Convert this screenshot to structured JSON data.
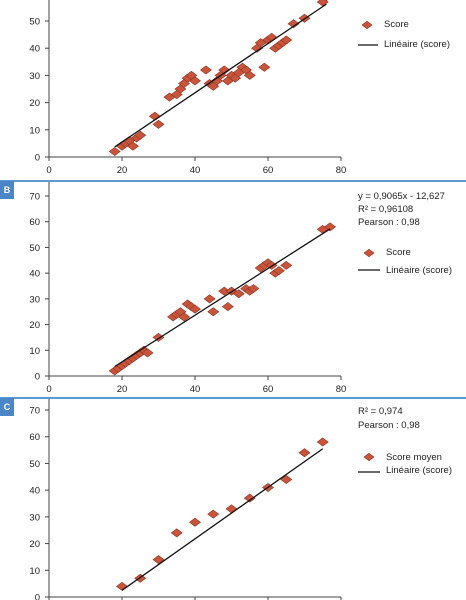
{
  "colors": {
    "marker": "#c8553b",
    "marker_edge": "#8e3524",
    "trend": "#111111",
    "divider": "#5b9bd5",
    "label_bg": "#4a86c8"
  },
  "panels": [
    {
      "label": "",
      "stats": [],
      "legend_score": "Score",
      "legend_trend": "Linéaire (score)"
    },
    {
      "label": "B",
      "stats": [
        "y = 0,9065x - 12,627",
        "R² = 0,96108",
        "Pearson : 0,98"
      ],
      "legend_score": "Score",
      "legend_trend": "Linéaire (score)"
    },
    {
      "label": "C",
      "stats": [
        "R² = 0,974",
        "Pearson : 0,98"
      ],
      "legend_score": "Score moyen",
      "legend_trend": "Linéaire (score)"
    }
  ],
  "chart_data": [
    {
      "type": "scatter",
      "xlim": [
        0,
        80
      ],
      "ylim": [
        0,
        60
      ],
      "xticks": [
        "0",
        "20",
        "40",
        "60",
        "80"
      ],
      "yticks": [
        "0",
        "10",
        "20",
        "30",
        "40",
        "50"
      ],
      "series": [
        {
          "name": "Score",
          "points": [
            [
              18,
              2
            ],
            [
              20,
              4
            ],
            [
              21,
              5
            ],
            [
              22,
              6
            ],
            [
              23,
              4
            ],
            [
              24,
              7
            ],
            [
              25,
              8
            ],
            [
              29,
              15
            ],
            [
              30,
              12
            ],
            [
              33,
              22
            ],
            [
              35,
              23
            ],
            [
              36,
              25
            ],
            [
              37,
              27
            ],
            [
              38,
              29
            ],
            [
              39,
              30
            ],
            [
              40,
              28
            ],
            [
              43,
              32
            ],
            [
              44,
              27
            ],
            [
              45,
              26
            ],
            [
              46,
              28
            ],
            [
              47,
              30
            ],
            [
              48,
              32
            ],
            [
              49,
              28
            ],
            [
              50,
              30
            ],
            [
              51,
              29
            ],
            [
              52,
              31
            ],
            [
              53,
              33
            ],
            [
              54,
              32
            ],
            [
              55,
              30
            ],
            [
              57,
              40
            ],
            [
              58,
              42
            ],
            [
              59,
              33
            ],
            [
              60,
              43
            ],
            [
              61,
              44
            ],
            [
              62,
              40
            ],
            [
              63,
              41
            ],
            [
              64,
              42
            ],
            [
              65,
              43
            ],
            [
              67,
              49
            ],
            [
              70,
              51
            ],
            [
              75,
              57
            ],
            [
              76,
              59
            ]
          ]
        }
      ],
      "trendline": {
        "name": "Linéaire (score)",
        "from": [
          18,
          3.7
        ],
        "to": [
          76,
          56.2
        ]
      }
    },
    {
      "type": "scatter",
      "xlim": [
        0,
        80
      ],
      "ylim": [
        0,
        70
      ],
      "xticks": [
        "0",
        "20",
        "40",
        "60",
        "80"
      ],
      "yticks": [
        "0",
        "10",
        "20",
        "30",
        "40",
        "50",
        "60",
        "70"
      ],
      "series": [
        {
          "name": "Score",
          "points": [
            [
              18,
              2
            ],
            [
              19,
              3
            ],
            [
              20,
              4
            ],
            [
              21,
              5
            ],
            [
              22,
              6
            ],
            [
              23,
              7
            ],
            [
              24,
              8
            ],
            [
              25,
              9
            ],
            [
              26,
              10
            ],
            [
              27,
              9
            ],
            [
              30,
              15
            ],
            [
              34,
              23
            ],
            [
              35,
              24
            ],
            [
              36,
              25
            ],
            [
              37,
              23
            ],
            [
              38,
              28
            ],
            [
              39,
              27
            ],
            [
              40,
              26
            ],
            [
              44,
              30
            ],
            [
              45,
              25
            ],
            [
              48,
              33
            ],
            [
              49,
              27
            ],
            [
              50,
              33
            ],
            [
              52,
              32
            ],
            [
              54,
              34
            ],
            [
              55,
              33
            ],
            [
              56,
              34
            ],
            [
              58,
              42
            ],
            [
              59,
              43
            ],
            [
              60,
              44
            ],
            [
              61,
              43
            ],
            [
              62,
              40
            ],
            [
              63,
              41
            ],
            [
              65,
              43
            ],
            [
              75,
              57
            ],
            [
              77,
              58
            ]
          ]
        }
      ],
      "trendline": {
        "name": "Linéaire (score)",
        "from": [
          18,
          3.7
        ],
        "to": [
          77,
          57.2
        ]
      }
    },
    {
      "type": "scatter",
      "xlim": [
        0,
        80
      ],
      "ylim": [
        0,
        70
      ],
      "xticks": [],
      "yticks": [
        "0",
        "10",
        "20",
        "30",
        "40",
        "50",
        "60",
        "70"
      ],
      "series": [
        {
          "name": "Score moyen",
          "points": [
            [
              20,
              4
            ],
            [
              25,
              7
            ],
            [
              30,
              14
            ],
            [
              35,
              24
            ],
            [
              40,
              28
            ],
            [
              45,
              31
            ],
            [
              50,
              33
            ],
            [
              55,
              37
            ],
            [
              60,
              41
            ],
            [
              65,
              44
            ],
            [
              70,
              54
            ],
            [
              75,
              58
            ]
          ]
        }
      ],
      "trendline": {
        "name": "Linéaire (score)",
        "from": [
          20,
          2.5
        ],
        "to": [
          75,
          55.5
        ]
      }
    }
  ]
}
